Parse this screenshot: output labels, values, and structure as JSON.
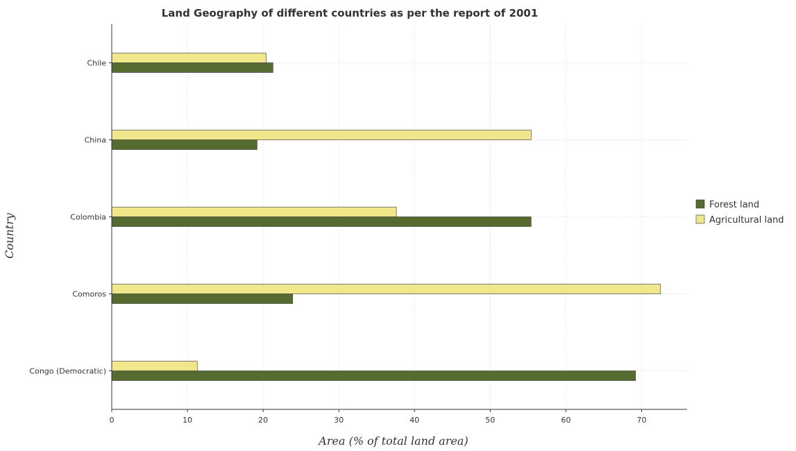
{
  "chart_data": {
    "type": "bar",
    "orientation": "horizontal",
    "title": "Land Geography of different countries as per the report of 2001",
    "xlabel": "Area (% of total land area)",
    "ylabel": "Country",
    "categories": [
      "Chile",
      "China",
      "Colombia",
      "Comoros",
      "Congo (Democratic)"
    ],
    "series": [
      {
        "name": "Forest land",
        "color": "#556b2f",
        "values": [
          21.3,
          19.2,
          55.4,
          23.9,
          69.2
        ]
      },
      {
        "name": "Agricultural land",
        "color": "#f0e68c",
        "values": [
          20.4,
          55.4,
          37.6,
          72.5,
          11.3
        ]
      }
    ],
    "xlim": [
      0,
      76
    ],
    "xticks": [
      0,
      10,
      20,
      30,
      40,
      50,
      60,
      70
    ],
    "grid": true,
    "legend_position": "right"
  }
}
